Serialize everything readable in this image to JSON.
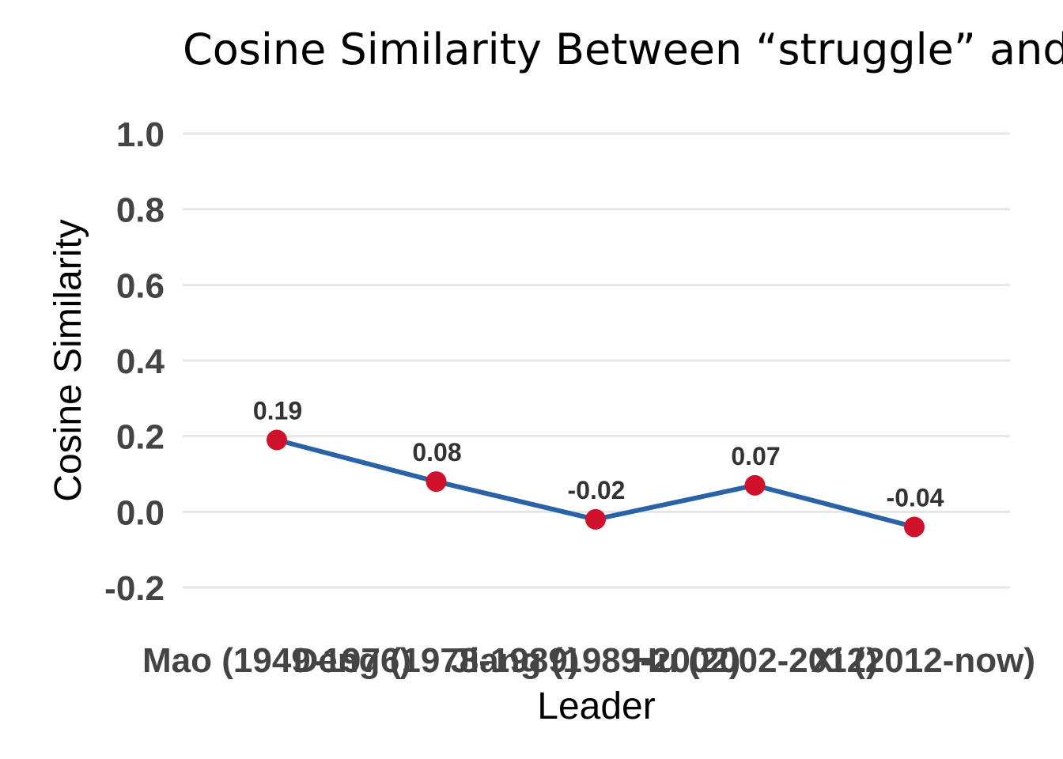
{
  "chart_data": {
    "type": "line",
    "title": "Cosine Similarity Between “struggle” and",
    "xlabel": "Leader",
    "ylabel": "Cosine Similarity",
    "categories": [
      "Mao (1949-1976)",
      "Deng (1978-1989)",
      "Jiang (1989-2002)",
      "Hu (2002-2012)",
      "Xi (2012-now)"
    ],
    "series": [
      {
        "values": [
          0.19,
          0.08,
          -0.02,
          0.07,
          -0.04
        ],
        "data_labels": [
          "0.19",
          "0.08",
          "-0.02",
          "0.07",
          "-0.04"
        ]
      }
    ],
    "ylim": [
      -0.2,
      1.0
    ],
    "yticks": [
      -0.2,
      0.0,
      0.2,
      0.4,
      0.6,
      0.8,
      1.0
    ],
    "ytick_labels": [
      "-0.2",
      "0.0",
      "0.2",
      "0.4",
      "0.6",
      "0.8",
      "1.0"
    ],
    "grid": true,
    "colors": {
      "line": "#2a62a8",
      "marker": "#d0112b",
      "grid": "#e6e6e6"
    }
  }
}
